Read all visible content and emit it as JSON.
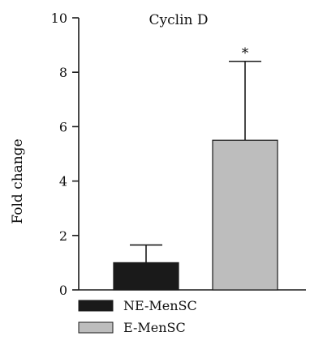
{
  "chart_data": {
    "type": "bar",
    "title": "Cyclin D",
    "ylabel": "Fold change",
    "xlabel": "",
    "ylim": [
      0,
      10
    ],
    "yticks": [
      0,
      2,
      4,
      6,
      8,
      10
    ],
    "grid": false,
    "legend_position": "bottom-left",
    "categories": [
      "NE-MenSC",
      "E-MenSC"
    ],
    "values": [
      1.0,
      5.5
    ],
    "error_upper": [
      1.65,
      8.4
    ],
    "significance": [
      "",
      "*"
    ],
    "colors": [
      "#1a1a1a",
      "#bdbdbd"
    ],
    "legend": [
      {
        "label": "NE-MenSC",
        "color": "#1a1a1a"
      },
      {
        "label": "E-MenSC",
        "color": "#bdbdbd"
      }
    ]
  }
}
